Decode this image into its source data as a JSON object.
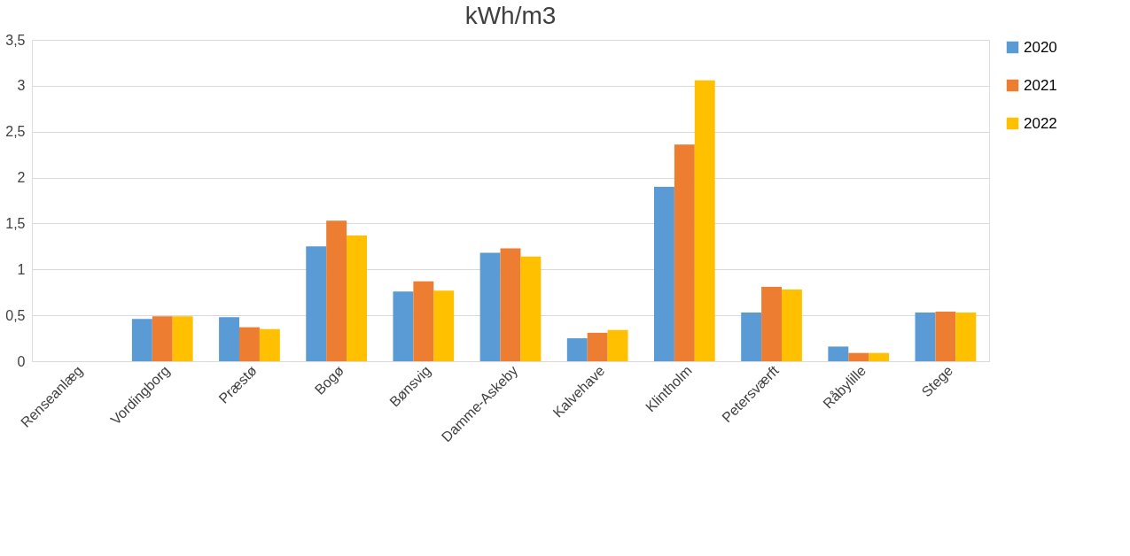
{
  "chart_data": {
    "type": "bar",
    "title": "kWh/m3",
    "categories": [
      "Renseanlæg",
      "Vordingborg",
      "Præstø",
      "Bogø",
      "Bønsvig",
      "Damme-Askeby",
      "Kalvehave",
      "Klintholm",
      "Petersværft",
      "Råbylille",
      "Stege"
    ],
    "series": [
      {
        "name": "2020",
        "color": "#5b9bd5",
        "values": [
          null,
          0.46,
          0.48,
          1.25,
          0.76,
          1.18,
          0.25,
          1.9,
          0.53,
          0.16,
          0.53
        ]
      },
      {
        "name": "2021",
        "color": "#ed7d31",
        "values": [
          null,
          0.49,
          0.37,
          1.53,
          0.87,
          1.23,
          0.31,
          2.36,
          0.81,
          0.09,
          0.54
        ]
      },
      {
        "name": "2022",
        "color": "#ffc000",
        "values": [
          null,
          0.49,
          0.35,
          1.37,
          0.77,
          1.14,
          0.34,
          3.06,
          0.78,
          0.09,
          0.53
        ]
      }
    ],
    "ylim": [
      0,
      3.5
    ],
    "yticks": [
      0,
      {
        "value": 0.5,
        "label": "0,5"
      },
      1,
      {
        "value": 1.5,
        "label": "1,5"
      },
      2,
      {
        "value": 2.5,
        "label": "2,5"
      },
      3,
      {
        "value": 3.5,
        "label": "3,5"
      }
    ],
    "grid": "y",
    "legend": "right"
  }
}
